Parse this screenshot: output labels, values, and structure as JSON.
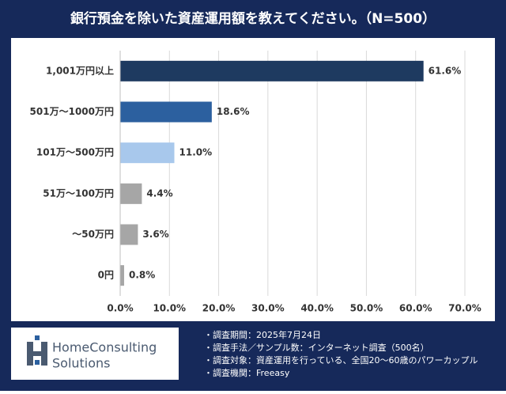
{
  "chart_data": {
    "type": "hbar",
    "title": "銀行預金を除いた資産運用額を教えてください。（N=500）",
    "categories": [
      "1,001万円以上",
      "501万～1000万円",
      "101万～500万円",
      "51万～100万円",
      "～50万円",
      "0円"
    ],
    "values": [
      61.6,
      18.6,
      11.0,
      4.4,
      3.6,
      0.8
    ],
    "value_labels": [
      "61.6%",
      "18.6%",
      "11.0%",
      "4.4%",
      "3.6%",
      "0.8%"
    ],
    "colors": [
      "#1e3a60",
      "#2c609f",
      "#a8c8ec",
      "#a6a6a6",
      "#a6a6a6",
      "#a6a6a6"
    ],
    "xlim": [
      0,
      70
    ],
    "xticks": [
      {
        "value": 0,
        "label": "0.0%"
      },
      {
        "value": 10,
        "label": "10.0%"
      },
      {
        "value": 20,
        "label": "20.0%"
      },
      {
        "value": 30,
        "label": "30.0%"
      },
      {
        "value": 40,
        "label": "40.0%"
      },
      {
        "value": 50,
        "label": "50.0%"
      },
      {
        "value": 60,
        "label": "60.0%"
      },
      {
        "value": 70,
        "label": "70.0%"
      }
    ],
    "grid": true
  },
  "footer": {
    "logo": [
      "HomeConsulting",
      "Solutions"
    ],
    "notes": [
      "・調査期間：2025年7月24日",
      "・調査手法／サンプル数：インターネット調査（500名）",
      "・調査対象：資産運用を行っている、全国20～60歳のパワーカップル",
      "・調査機関：Freeasy"
    ]
  }
}
